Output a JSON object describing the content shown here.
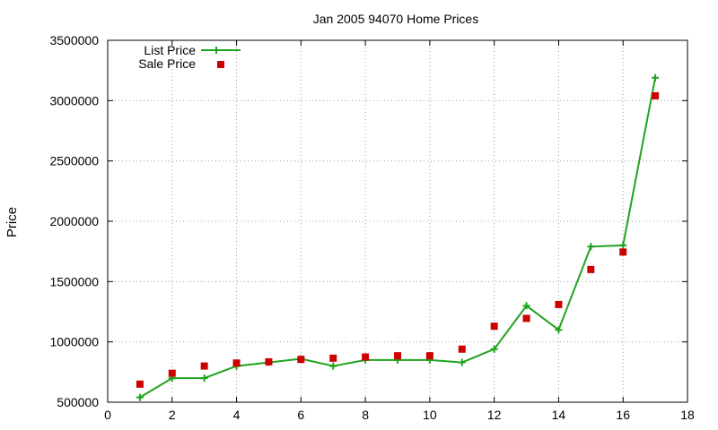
{
  "chart_data": {
    "type": "line",
    "title": "Jan 2005 94070 Home Prices",
    "xlabel": "",
    "ylabel": "Price",
    "xlim": [
      0,
      18
    ],
    "ylim": [
      500000,
      3500000
    ],
    "xticks": [
      0,
      2,
      4,
      6,
      8,
      10,
      12,
      14,
      16,
      18
    ],
    "yticks": [
      500000,
      1000000,
      1500000,
      2000000,
      2500000,
      3000000,
      3500000
    ],
    "grid": true,
    "legend_position": "top-left",
    "series": [
      {
        "name": "List Price",
        "style": "line-with-plus-markers",
        "color": "#1fa31f",
        "x": [
          1,
          2,
          3,
          4,
          5,
          6,
          7,
          8,
          9,
          10,
          11,
          12,
          13,
          14,
          15,
          16,
          17
        ],
        "values": [
          540000,
          700000,
          700000,
          800000,
          830000,
          860000,
          800000,
          850000,
          850000,
          850000,
          830000,
          940000,
          1300000,
          1100000,
          1790000,
          1800000,
          3190000
        ]
      },
      {
        "name": "Sale Price",
        "style": "square-markers",
        "color": "#cc0000",
        "x": [
          1,
          2,
          3,
          4,
          5,
          6,
          7,
          8,
          9,
          10,
          11,
          12,
          13,
          14,
          15,
          16,
          17
        ],
        "values": [
          650000,
          740000,
          800000,
          825000,
          835000,
          855000,
          865000,
          875000,
          885000,
          885000,
          940000,
          1130000,
          1195000,
          1310000,
          1600000,
          1745000,
          3040000
        ]
      }
    ]
  }
}
